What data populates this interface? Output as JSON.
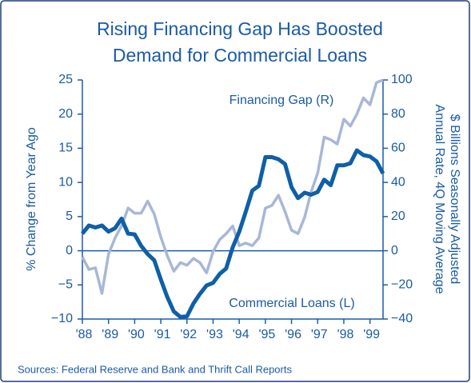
{
  "chart_data": {
    "type": "line",
    "title": [
      "Rising Financing Gap Has Boosted",
      "Demand for Commercial Loans"
    ],
    "ylabel": "% Change from Year Ago",
    "y2label": [
      "$ Billions Seasonally Adjusted",
      "Annual Rate, 4Q Moving Average"
    ],
    "source": "Sources: Federal Reserve and Bank and Thrift Call Reports",
    "x": [
      1988,
      1988.25,
      1988.5,
      1988.75,
      1989,
      1989.25,
      1989.5,
      1989.75,
      1990,
      1990.25,
      1990.5,
      1990.75,
      1991,
      1991.25,
      1991.5,
      1991.75,
      1992,
      1992.25,
      1992.5,
      1992.75,
      1993,
      1993.25,
      1993.5,
      1993.75,
      1994,
      1994.25,
      1994.5,
      1994.75,
      1995,
      1995.25,
      1995.5,
      1995.75,
      1996,
      1996.25,
      1996.5,
      1996.75,
      1997,
      1997.25,
      1997.5,
      1997.75,
      1998,
      1998.25,
      1998.5,
      1998.75,
      1999,
      1999.25,
      1999.5
    ],
    "series": [
      {
        "name": "Commercial Loans (L)",
        "color": "#0f5fa8",
        "axis": "y",
        "values": [
          2.5,
          3.7,
          3.4,
          3.7,
          2.8,
          3.3,
          4.7,
          2.5,
          2.4,
          0.7,
          -0.5,
          -1.4,
          -4.2,
          -6.8,
          -8.9,
          -9.7,
          -9.6,
          -7.7,
          -6.3,
          -5.1,
          -4.7,
          -3.4,
          -2.6,
          0.5,
          2.8,
          5.7,
          8.8,
          9.5,
          13.7,
          13.7,
          13.4,
          12.7,
          9.3,
          7.7,
          8.5,
          8.2,
          8.6,
          10.4,
          9.6,
          12.5,
          12.5,
          12.8,
          14.7,
          14.0,
          13.8,
          13.1,
          11.3
        ]
      },
      {
        "name": "Financing Gap (R)",
        "color": "#a8b7d8",
        "axis": "y2",
        "values": [
          -3.7,
          -11,
          -10,
          -25,
          -2,
          7.5,
          14.5,
          25,
          22,
          22,
          29,
          21.5,
          8,
          -3,
          -12,
          -7,
          -8.5,
          -4.5,
          -7,
          -13,
          -0.5,
          6.5,
          10,
          14.5,
          3,
          4.5,
          3,
          7.5,
          25,
          26.5,
          32.5,
          23,
          12,
          10,
          19.5,
          34.5,
          45.5,
          66.5,
          65,
          62.5,
          77,
          73,
          80,
          89.5,
          85.5,
          98.5,
          100
        ]
      }
    ],
    "xlim": [
      1988,
      1999.5
    ],
    "xticks": [
      {
        "value": 1988,
        "label": "'88"
      },
      {
        "value": 1989,
        "label": "'89"
      },
      {
        "value": 1990,
        "label": "'90"
      },
      {
        "value": 1991,
        "label": "'91"
      },
      {
        "value": 1992,
        "label": "'92"
      },
      {
        "value": 1993,
        "label": "'93"
      },
      {
        "value": 1994,
        "label": "'94"
      },
      {
        "value": 1995,
        "label": "'95"
      },
      {
        "value": 1996,
        "label": "'96"
      },
      {
        "value": 1997,
        "label": "'97"
      },
      {
        "value": 1998,
        "label": "'98"
      },
      {
        "value": 1999,
        "label": "'99"
      }
    ],
    "ylim": [
      -10,
      25
    ],
    "yticks": [
      {
        "value": -10,
        "label": "−10"
      },
      {
        "value": -5,
        "label": "−5"
      },
      0,
      5,
      10,
      15,
      20,
      25
    ],
    "y2lim": [
      -40,
      100
    ],
    "y2ticks": [
      {
        "value": -40,
        "label": "−40"
      },
      {
        "value": -20,
        "label": "−20"
      },
      0,
      20,
      40,
      60,
      80,
      100
    ]
  }
}
